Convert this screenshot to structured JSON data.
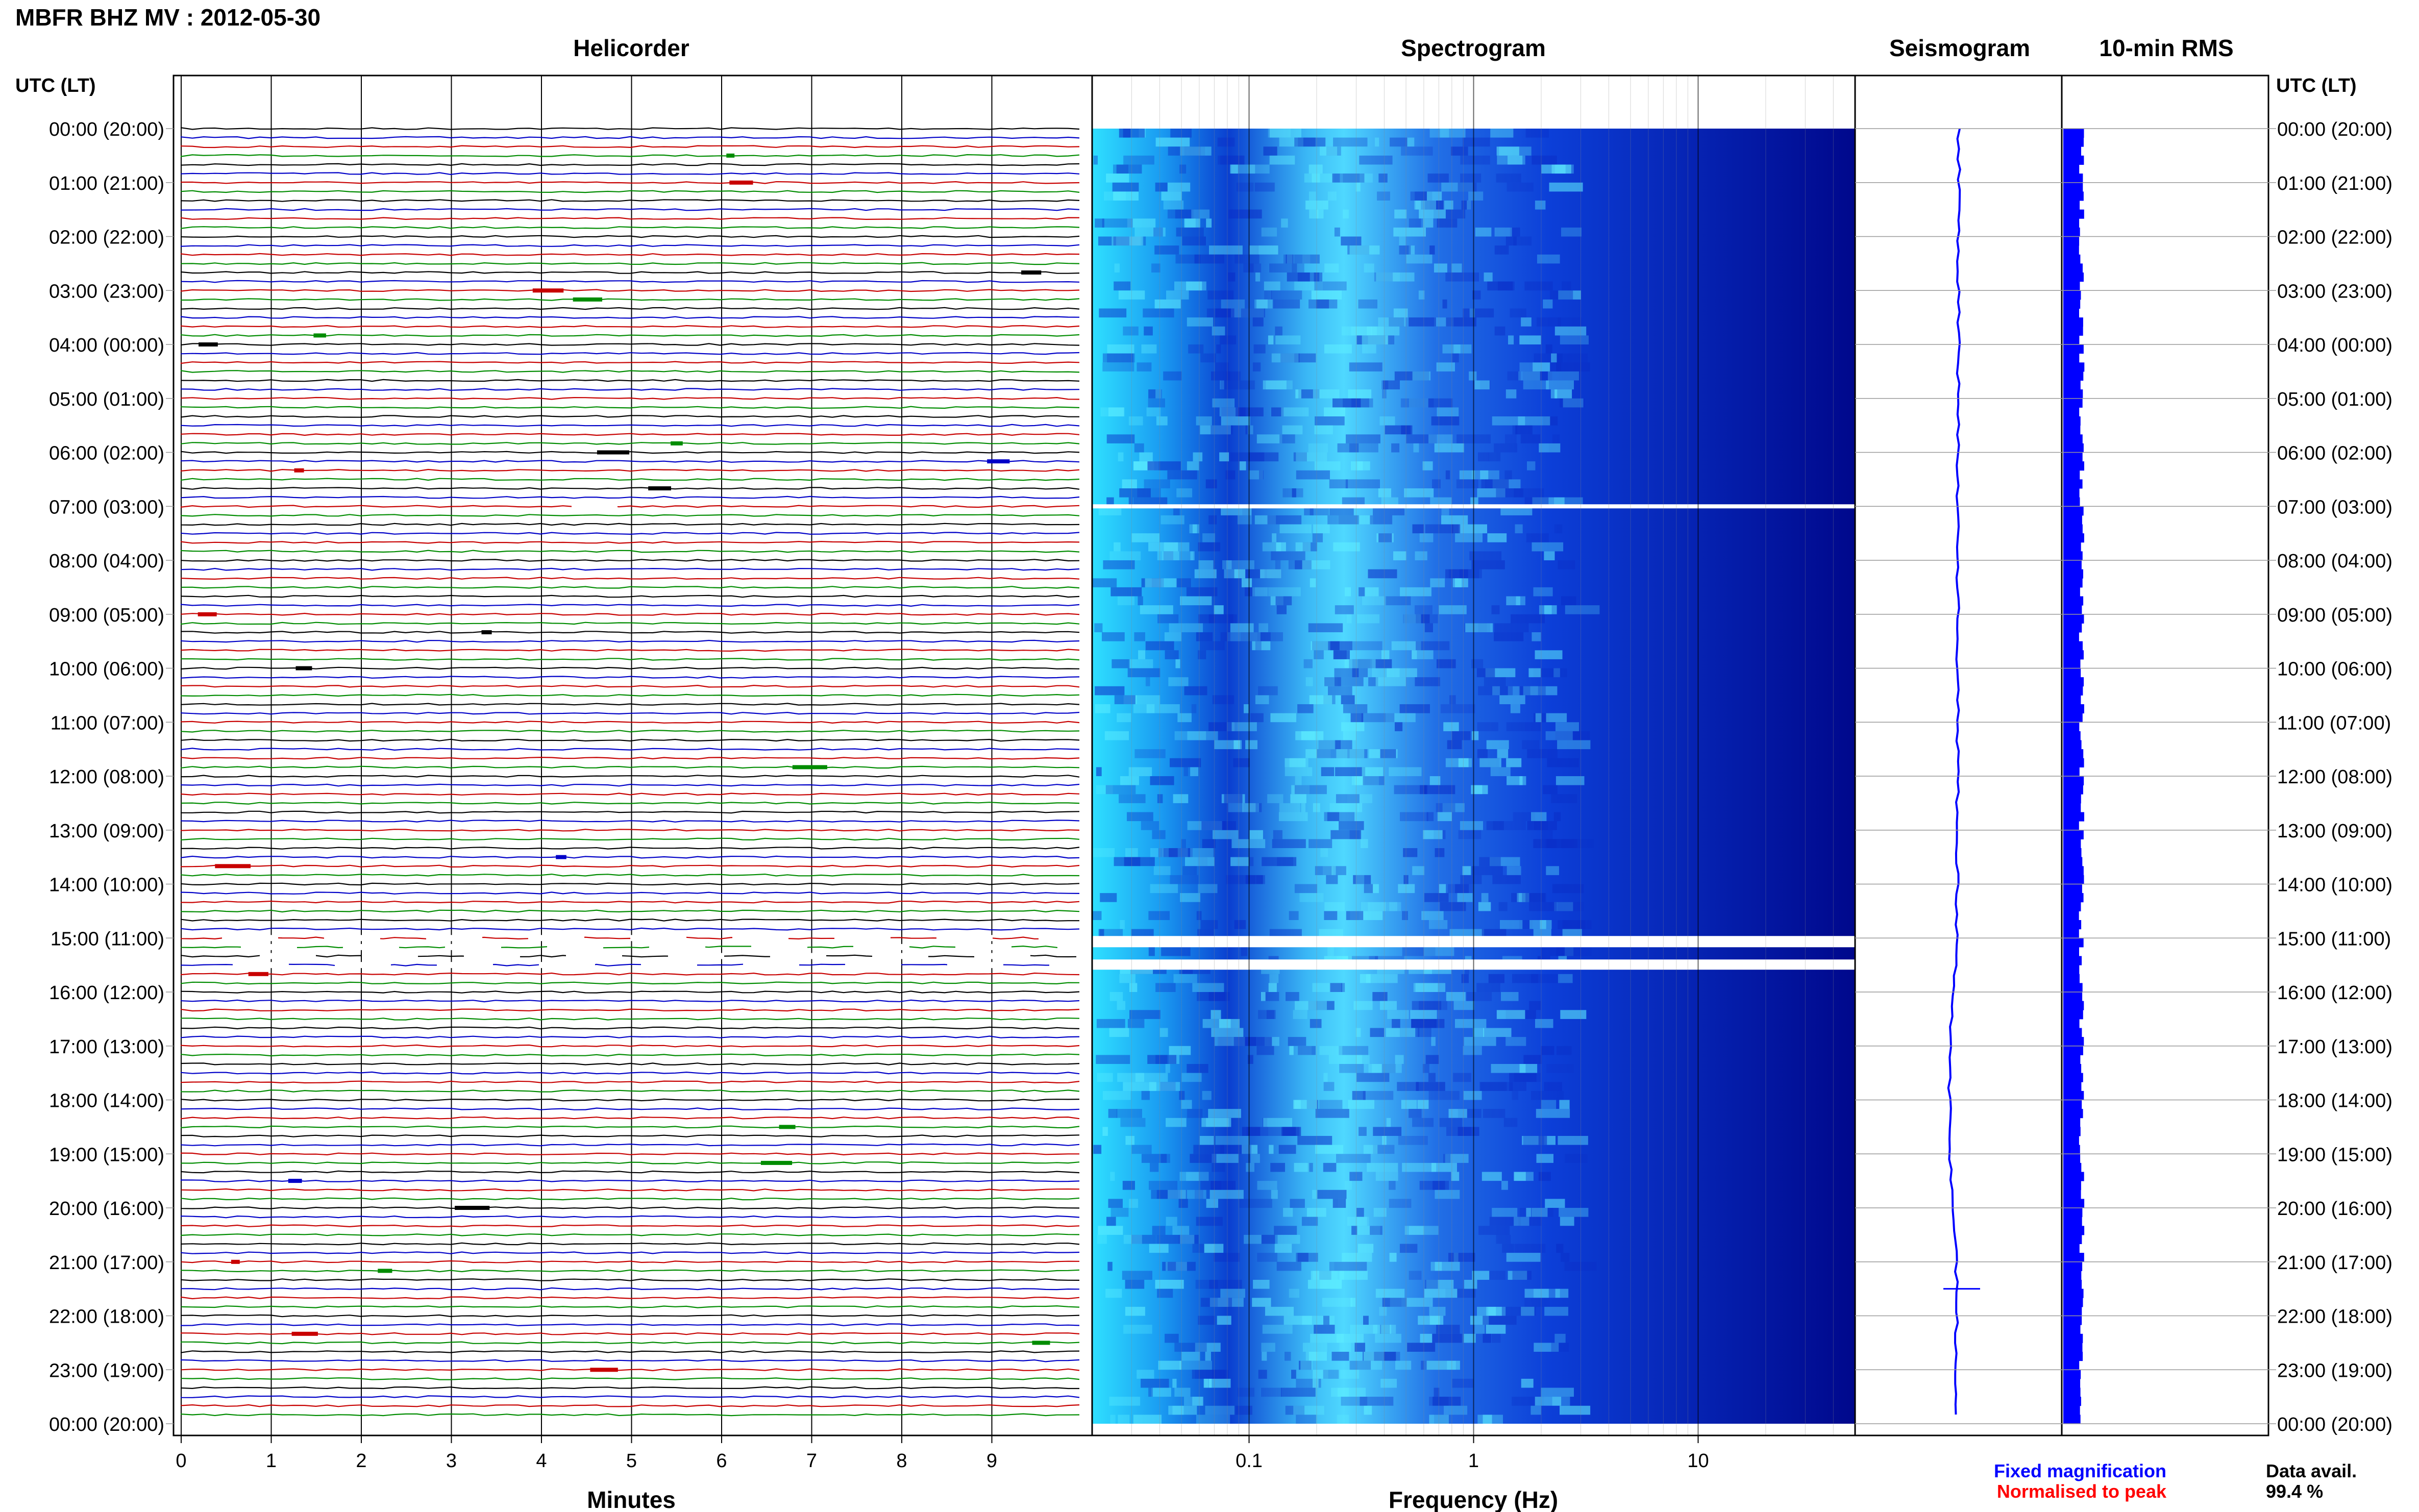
{
  "header": {
    "station_title": "MBFR BHZ MV : 2012-05-30",
    "utc_label_left": "UTC (LT)",
    "utc_label_right": "UTC (LT)"
  },
  "panels": {
    "helicorder_title": "Helicorder",
    "spectrogram_title": "Spectrogram",
    "seismogram_title": "Seismogram",
    "rms_title": "10-min RMS"
  },
  "legend": {
    "fixed_magnification": "Fixed magnification",
    "normalised_to_peak": "Normalised to peak",
    "data_avail_label": "Data avail.",
    "data_avail_value": "99.4 %"
  },
  "colors": {
    "trace_cycle": [
      "#000000",
      "#0000c8",
      "#c80000",
      "#008c00"
    ],
    "fixed_magnification": "#0000ff",
    "normalised_to_peak": "#ff0000",
    "seismogram_trace": "#0000ff",
    "rms_fill": "#0000ff",
    "spectrogram_low": "#00008c",
    "spectrogram_high": "#7dffff"
  },
  "chart_data": [
    {
      "type": "line",
      "title": "Helicorder",
      "xlabel": "Minutes",
      "ylabel": "UTC (LT)",
      "xlim": [
        0,
        10
      ],
      "x_ticks": [
        0,
        1,
        2,
        3,
        4,
        5,
        6,
        7,
        8,
        9
      ],
      "y_ticks": [
        "00:00 (20:00)",
        "01:00 (21:00)",
        "02:00 (22:00)",
        "03:00 (23:00)",
        "04:00 (00:00)",
        "05:00 (01:00)",
        "06:00 (02:00)",
        "07:00 (03:00)",
        "08:00 (04:00)",
        "09:00 (05:00)",
        "10:00 (06:00)",
        "11:00 (07:00)",
        "12:00 (08:00)",
        "13:00 (09:00)",
        "14:00 (10:00)",
        "15:00 (11:00)",
        "16:00 (12:00)",
        "17:00 (13:00)",
        "18:00 (14:00)",
        "19:00 (15:00)",
        "20:00 (16:00)",
        "21:00 (17:00)",
        "22:00 (18:00)",
        "23:00 (19:00)",
        "00:00 (20:00)"
      ],
      "lines_per_hour": 6,
      "total_lines": 144,
      "data_gaps_utc": [
        "07:00 short gap near minute 4.5",
        "15:00-15:40"
      ],
      "grid": true
    },
    {
      "type": "heatmap",
      "title": "Spectrogram",
      "xlabel": "Frequency (Hz)",
      "x_scale": "log",
      "xlim": [
        0.02,
        50
      ],
      "x_ticks": [
        0.1,
        1,
        10
      ],
      "y_range_utc_hours": [
        0,
        24
      ],
      "data_gaps_utc": [
        "07:00",
        "15:00-15:10",
        "15:20-15:30"
      ],
      "peak_band_hz": [
        0.2,
        0.3
      ]
    },
    {
      "type": "line",
      "title": "Seismogram",
      "note_visible": "long-period trace, drifts left between 15:00 and 21:00, spike near 21:30"
    },
    {
      "type": "bar",
      "title": "10-min RMS",
      "orientation": "horizontal",
      "bars": 144,
      "level_fraction_of_panel": 0.09
    }
  ]
}
